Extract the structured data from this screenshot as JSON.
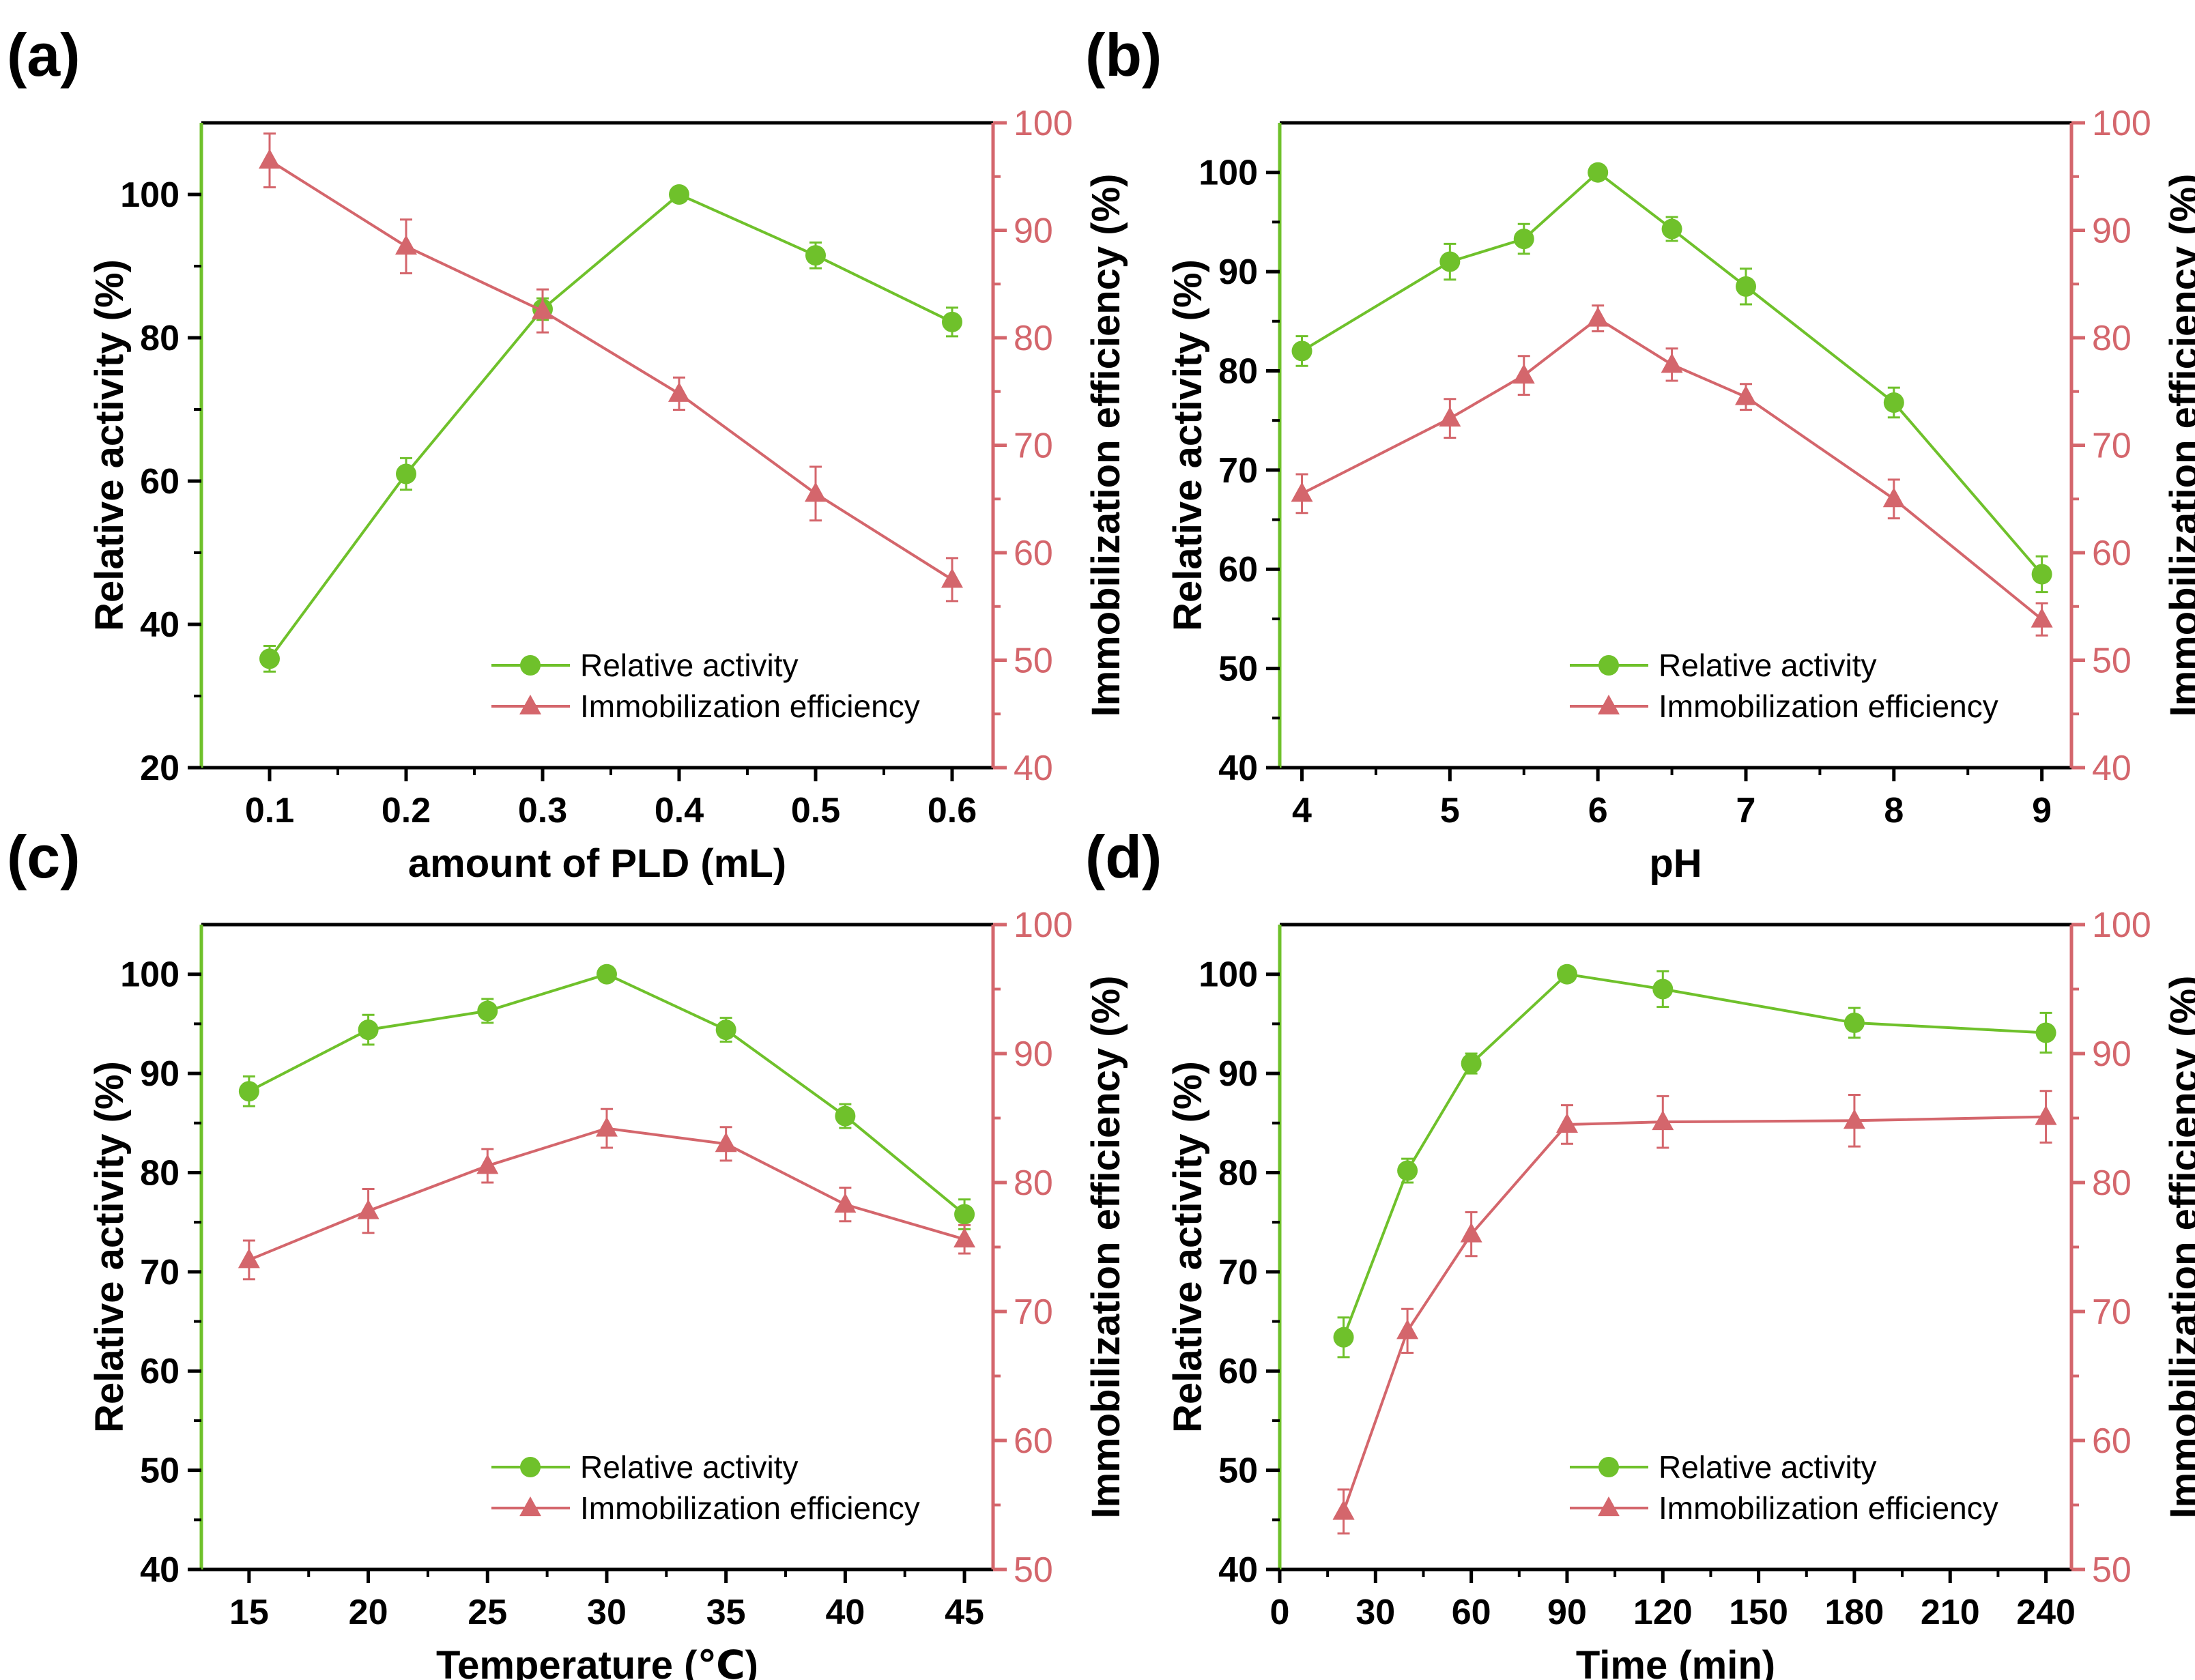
{
  "colors": {
    "green": "#6fc12b",
    "red": "#d4666c",
    "axis": "#000000"
  },
  "chart_data": [
    {
      "panel": "(a)",
      "type": "line",
      "xlabel": "amount of PLD (mL)",
      "ylabel": "Relative activity (%)",
      "y2label": "Immobilization efficiency (%)",
      "x": [
        0.1,
        0.2,
        0.3,
        0.4,
        0.5,
        0.6
      ],
      "xticks": [
        "0.1",
        "0.2",
        "0.3",
        "0.4",
        "0.5",
        "0.6"
      ],
      "xlim": [
        0.05,
        0.63
      ],
      "ylim": [
        20,
        110
      ],
      "yticks": [
        20,
        40,
        60,
        80,
        100
      ],
      "y2lim": [
        40,
        100
      ],
      "y2ticks": [
        40,
        50,
        60,
        70,
        80,
        90,
        100
      ],
      "legend_position": "bottom-right",
      "series": [
        {
          "name": "Relative activity",
          "axis": "left",
          "marker": "circle",
          "color": "green",
          "values": [
            35.2,
            61.0,
            84.0,
            100.0,
            91.5,
            82.2
          ],
          "errors": [
            1.8,
            2.2,
            1.5,
            0,
            1.8,
            2.0
          ]
        },
        {
          "name": "Immobilization efficiency",
          "axis": "right",
          "marker": "triangle",
          "color": "red",
          "values": [
            96.5,
            88.5,
            82.5,
            74.8,
            65.5,
            57.5
          ],
          "errors": [
            2.5,
            2.5,
            2.0,
            1.5,
            2.5,
            2.0
          ]
        }
      ]
    },
    {
      "panel": "(b)",
      "type": "line",
      "xlabel": "pH",
      "ylabel": "Relative activity (%)",
      "y2label": "Immobilization efficiency (%)",
      "x": [
        4,
        5,
        5.5,
        6,
        6.5,
        7,
        8,
        9
      ],
      "xticks": [
        "4",
        "5",
        "6",
        "7",
        "8",
        "9"
      ],
      "xlim": [
        3.85,
        9.2
      ],
      "ylim": [
        40,
        105
      ],
      "yticks": [
        40,
        50,
        60,
        70,
        80,
        90,
        100
      ],
      "y2lim": [
        40,
        100
      ],
      "y2ticks": [
        40,
        50,
        60,
        70,
        80,
        90,
        100
      ],
      "legend_position": "bottom-right",
      "series": [
        {
          "name": "Relative activity",
          "axis": "left",
          "marker": "circle",
          "color": "green",
          "values": [
            82.0,
            91.0,
            93.3,
            100.0,
            94.3,
            88.5,
            76.8,
            59.5
          ],
          "errors": [
            1.5,
            1.8,
            1.5,
            0,
            1.2,
            1.8,
            1.5,
            1.8
          ]
        },
        {
          "name": "Immobilization efficiency",
          "axis": "right",
          "marker": "triangle",
          "color": "red",
          "values": [
            65.5,
            72.5,
            76.5,
            81.8,
            77.5,
            74.5,
            65.0,
            53.8
          ],
          "errors": [
            1.8,
            1.8,
            1.8,
            1.2,
            1.5,
            1.2,
            1.8,
            1.5
          ]
        }
      ]
    },
    {
      "panel": "(c)",
      "type": "line",
      "xlabel": "Temperature (℃)",
      "ylabel": "Relative activity (%)",
      "y2label": "Immobilization efficiency (%)",
      "x": [
        15,
        20,
        25,
        30,
        35,
        40,
        45
      ],
      "xticks": [
        "15",
        "20",
        "25",
        "30",
        "35",
        "40",
        "45"
      ],
      "xlim": [
        13,
        46.2
      ],
      "ylim": [
        40,
        105
      ],
      "yticks": [
        40,
        50,
        60,
        70,
        80,
        90,
        100
      ],
      "y2lim": [
        50,
        100
      ],
      "y2ticks": [
        50,
        60,
        70,
        80,
        90,
        100
      ],
      "legend_position": "bottom-right",
      "series": [
        {
          "name": "Relative activity",
          "axis": "left",
          "marker": "circle",
          "color": "green",
          "values": [
            88.2,
            94.4,
            96.3,
            100.0,
            94.4,
            85.7,
            75.8
          ],
          "errors": [
            1.5,
            1.5,
            1.2,
            0,
            1.2,
            1.2,
            1.5
          ]
        },
        {
          "name": "Immobilization efficiency",
          "axis": "right",
          "marker": "triangle",
          "color": "red",
          "values": [
            74.0,
            77.8,
            81.3,
            84.2,
            83.0,
            78.3,
            75.6
          ],
          "errors": [
            1.5,
            1.7,
            1.3,
            1.5,
            1.3,
            1.3,
            1.1
          ]
        }
      ]
    },
    {
      "panel": "(d)",
      "type": "line",
      "xlabel": "Time (min)",
      "ylabel": "Relative activity (%)",
      "y2label": "Immobilization efficiency (%)",
      "x": [
        20,
        40,
        60,
        90,
        120,
        180,
        240
      ],
      "xticks": [
        "0",
        "30",
        "60",
        "90",
        "120",
        "150",
        "180",
        "210",
        "240"
      ],
      "xtick_values": [
        0,
        30,
        60,
        90,
        120,
        150,
        180,
        210,
        240
      ],
      "xlim": [
        0,
        248
      ],
      "ylim": [
        40,
        105
      ],
      "yticks": [
        40,
        50,
        60,
        70,
        80,
        90,
        100
      ],
      "y2lim": [
        50,
        100
      ],
      "y2ticks": [
        50,
        60,
        70,
        80,
        90,
        100
      ],
      "legend_position": "bottom-right",
      "series": [
        {
          "name": "Relative activity",
          "axis": "left",
          "marker": "circle",
          "color": "green",
          "values": [
            63.4,
            80.2,
            91.0,
            100.0,
            98.5,
            95.1,
            94.1
          ],
          "errors": [
            2.0,
            1.2,
            1.0,
            0,
            1.8,
            1.5,
            2.0
          ]
        },
        {
          "name": "Immobilization efficiency",
          "axis": "right",
          "marker": "triangle",
          "color": "red",
          "values": [
            54.5,
            68.5,
            76.0,
            84.5,
            84.7,
            84.8,
            85.1
          ],
          "errors": [
            1.7,
            1.7,
            1.7,
            1.5,
            2.0,
            2.0,
            2.0
          ]
        }
      ]
    }
  ]
}
